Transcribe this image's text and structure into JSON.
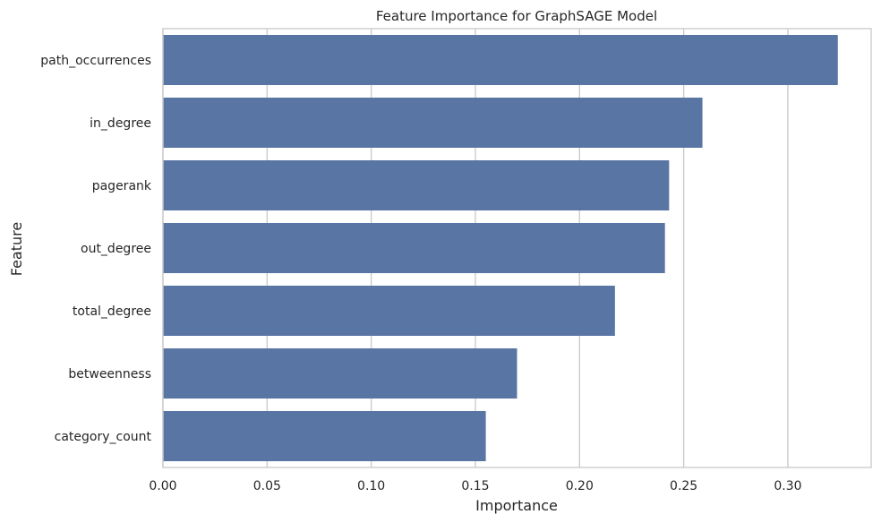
{
  "chart_data": {
    "type": "bar",
    "orientation": "horizontal",
    "title": "Feature Importance for GraphSAGE Model",
    "xlabel": "Importance",
    "ylabel": "Feature",
    "categories": [
      "path_occurrences",
      "in_degree",
      "pagerank",
      "out_degree",
      "total_degree",
      "betweenness",
      "category_count"
    ],
    "values": [
      0.324,
      0.259,
      0.243,
      0.241,
      0.217,
      0.17,
      0.155
    ],
    "xlim": [
      0,
      0.34
    ],
    "xticks": [
      0.0,
      0.05,
      0.1,
      0.15,
      0.2,
      0.25,
      0.3
    ],
    "xtick_labels": [
      "0.00",
      "0.05",
      "0.10",
      "0.15",
      "0.20",
      "0.25",
      "0.30"
    ],
    "grid": "vertical",
    "bar_color": "#5975a4"
  }
}
